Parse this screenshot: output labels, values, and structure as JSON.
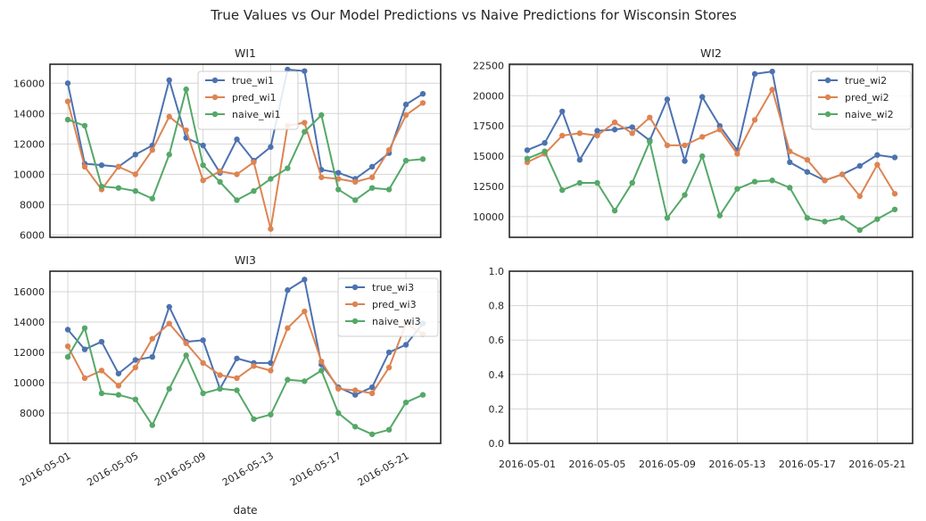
{
  "figure_title": "True Values vs Our Model Predictions vs Naive Predictions for Wisconsin Stores",
  "colors": {
    "true": "#4c72b0",
    "pred": "#dd8452",
    "naive": "#55a868",
    "grid": "#d5d5d5",
    "axis": "#262626"
  },
  "x_ticks": [
    "2016-05-01",
    "2016-05-05",
    "2016-05-09",
    "2016-05-13",
    "2016-05-17",
    "2016-05-21"
  ],
  "chart_data": [
    {
      "type": "line",
      "title": "WI1",
      "x": [
        "2016-05-01",
        "2016-05-02",
        "2016-05-03",
        "2016-05-04",
        "2016-05-05",
        "2016-05-06",
        "2016-05-07",
        "2016-05-08",
        "2016-05-09",
        "2016-05-10",
        "2016-05-11",
        "2016-05-12",
        "2016-05-13",
        "2016-05-14",
        "2016-05-15",
        "2016-05-16",
        "2016-05-17",
        "2016-05-18",
        "2016-05-19",
        "2016-05-20",
        "2016-05-21",
        "2016-05-22"
      ],
      "series": [
        {
          "name": "true_wi1",
          "values": [
            16000,
            10700,
            10600,
            10500,
            11300,
            11900,
            16200,
            12400,
            11900,
            10100,
            12300,
            10900,
            11800,
            16900,
            16800,
            10300,
            10100,
            9700,
            10500,
            11400,
            14600,
            15300
          ]
        },
        {
          "name": "pred_wi1",
          "values": [
            14800,
            10500,
            9000,
            10500,
            10000,
            11600,
            13800,
            12900,
            9600,
            10200,
            10000,
            10800,
            6400,
            13200,
            13400,
            9800,
            9700,
            9500,
            9800,
            11600,
            13900,
            14700
          ]
        },
        {
          "name": "naive_wi1",
          "values": [
            13600,
            13200,
            9200,
            9100,
            8900,
            8400,
            11300,
            15600,
            10600,
            9500,
            8300,
            8900,
            9700,
            10400,
            12800,
            13900,
            9000,
            8300,
            9100,
            9000,
            10900,
            11000
          ]
        }
      ],
      "y_ticks": [
        "6000",
        "8000",
        "10000",
        "12000",
        "14000",
        "16000"
      ],
      "ylim": [
        5850,
        17250
      ],
      "xlabel": "",
      "show_x_ticks": false,
      "legend": "top-center"
    },
    {
      "type": "line",
      "title": "WI2",
      "x": [
        "2016-05-01",
        "2016-05-02",
        "2016-05-03",
        "2016-05-04",
        "2016-05-05",
        "2016-05-06",
        "2016-05-07",
        "2016-05-08",
        "2016-05-09",
        "2016-05-10",
        "2016-05-11",
        "2016-05-12",
        "2016-05-13",
        "2016-05-14",
        "2016-05-15",
        "2016-05-16",
        "2016-05-17",
        "2016-05-18",
        "2016-05-19",
        "2016-05-20",
        "2016-05-21",
        "2016-05-22"
      ],
      "series": [
        {
          "name": "true_wi2",
          "values": [
            15500,
            16100,
            18700,
            14700,
            17100,
            17200,
            17400,
            16300,
            19700,
            14600,
            19900,
            17500,
            15500,
            21800,
            22000,
            14500,
            13700,
            13000,
            13500,
            14200,
            15100,
            14900
          ]
        },
        {
          "name": "pred_wi2",
          "values": [
            14500,
            15200,
            16700,
            16900,
            16700,
            17800,
            16900,
            18200,
            15900,
            15900,
            16600,
            17200,
            15200,
            18000,
            20500,
            15400,
            14700,
            13000,
            13500,
            11700,
            14300,
            11900
          ]
        },
        {
          "name": "naive_wi2",
          "values": [
            14800,
            15400,
            12200,
            12800,
            12800,
            10500,
            12800,
            16200,
            9900,
            11800,
            15000,
            10100,
            12300,
            12900,
            13000,
            12400,
            9900,
            9600,
            9900,
            8900,
            9800,
            10600
          ]
        }
      ],
      "y_ticks": [
        "10000",
        "12500",
        "15000",
        "17500",
        "20000",
        "22500"
      ],
      "ylim": [
        8300,
        22600
      ],
      "xlabel": "",
      "show_x_ticks": false,
      "legend": "top-right"
    },
    {
      "type": "line",
      "title": "WI3",
      "x": [
        "2016-05-01",
        "2016-05-02",
        "2016-05-03",
        "2016-05-04",
        "2016-05-05",
        "2016-05-06",
        "2016-05-07",
        "2016-05-08",
        "2016-05-09",
        "2016-05-10",
        "2016-05-11",
        "2016-05-12",
        "2016-05-13",
        "2016-05-14",
        "2016-05-15",
        "2016-05-16",
        "2016-05-17",
        "2016-05-18",
        "2016-05-19",
        "2016-05-20",
        "2016-05-21",
        "2016-05-22"
      ],
      "series": [
        {
          "name": "true_wi3",
          "values": [
            13500,
            12200,
            12700,
            10600,
            11500,
            11700,
            15000,
            12700,
            12800,
            9600,
            11600,
            11300,
            11300,
            16100,
            16800,
            11200,
            9700,
            9200,
            9700,
            12000,
            12500,
            13900
          ]
        },
        {
          "name": "pred_wi3",
          "values": [
            12400,
            10300,
            10800,
            9800,
            11000,
            12900,
            13900,
            12600,
            11300,
            10500,
            10300,
            11100,
            10800,
            13600,
            14700,
            11400,
            9600,
            9500,
            9300,
            11000,
            13900,
            13200
          ]
        },
        {
          "name": "naive_wi3",
          "values": [
            11700,
            13600,
            9300,
            9200,
            8900,
            7200,
            9600,
            11800,
            9300,
            9600,
            9500,
            7600,
            7900,
            10200,
            10100,
            10800,
            8000,
            7100,
            6600,
            6900,
            8700,
            9200
          ]
        }
      ],
      "y_ticks": [
        "8000",
        "10000",
        "12000",
        "14000",
        "16000"
      ],
      "ylim": [
        6000,
        17350
      ],
      "xlabel": "date",
      "show_x_ticks": true,
      "legend": "top-right"
    },
    {
      "type": "line",
      "title": "",
      "series": [],
      "y_ticks": [
        "0.0",
        "0.2",
        "0.4",
        "0.6",
        "0.8",
        "1.0"
      ],
      "ylim": [
        0,
        1
      ],
      "xlabel": "",
      "show_x_ticks": true,
      "legend": "none"
    }
  ]
}
